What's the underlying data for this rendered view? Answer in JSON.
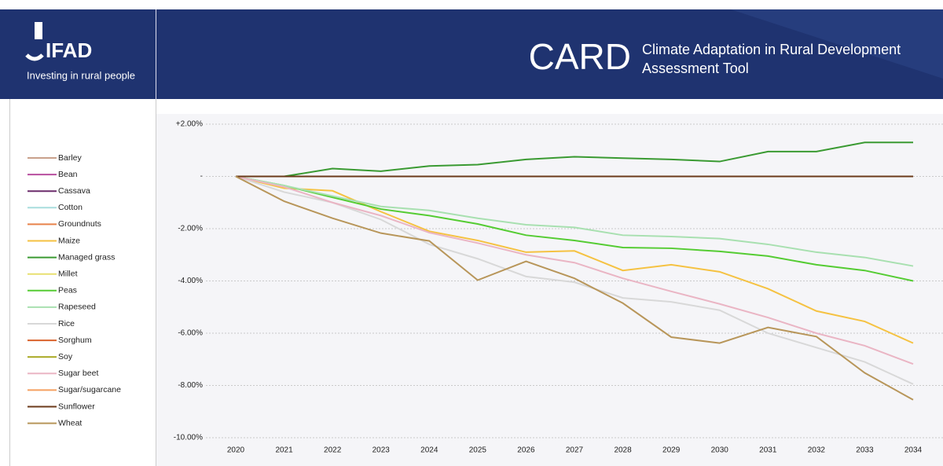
{
  "header": {
    "logo": "IFAD",
    "tagline": "Investing in rural people",
    "app_name": "CARD",
    "app_subtitle": [
      "Climate Adaptation in Rural Development",
      "Assessment Tool"
    ]
  },
  "chart_data": {
    "type": "line",
    "x": [
      2020,
      2021,
      2022,
      2023,
      2024,
      2025,
      2026,
      2027,
      2028,
      2029,
      2030,
      2031,
      2032,
      2033,
      2034
    ],
    "xlim": [
      2020,
      2034
    ],
    "ylim": [
      -10,
      2
    ],
    "yticks": [
      {
        "value": 2,
        "label": "+2.00%"
      },
      {
        "value": 0,
        "label": "-"
      },
      {
        "value": -2,
        "label": "-2.00%"
      },
      {
        "value": -4,
        "label": "-4.00%"
      },
      {
        "value": -6,
        "label": "-6.00%"
      },
      {
        "value": -8,
        "label": "-8.00%"
      },
      {
        "value": -10,
        "label": "-10.00%"
      }
    ],
    "grid": true,
    "legend": "left",
    "series": [
      {
        "name": "Barley",
        "color": "#c9a18c",
        "values": [
          0,
          0,
          0,
          0,
          0,
          0,
          0,
          0,
          0,
          0,
          0,
          0,
          0,
          0,
          0
        ]
      },
      {
        "name": "Bean",
        "color": "#b84f9f",
        "values": [
          0,
          0,
          0,
          0,
          0,
          0,
          0,
          0,
          0,
          0,
          0,
          0,
          0,
          0,
          0
        ]
      },
      {
        "name": "Cassava",
        "color": "#6b2c6b",
        "values": [
          0,
          0,
          0,
          0,
          0,
          0,
          0,
          0,
          0,
          0,
          0,
          0,
          0,
          0,
          0
        ]
      },
      {
        "name": "Cotton",
        "color": "#a8dede",
        "values": [
          0,
          0,
          0,
          0,
          0,
          0,
          0,
          0,
          0,
          0,
          0,
          0,
          0,
          0,
          0
        ]
      },
      {
        "name": "Groundnuts",
        "color": "#e8824a",
        "values": [
          0,
          0,
          0,
          0,
          0,
          0,
          0,
          0,
          0,
          0,
          0,
          0,
          0,
          0,
          0
        ]
      },
      {
        "name": "Maize",
        "color": "#f5c242",
        "values": [
          0,
          -0.45,
          -0.55,
          -1.35,
          -2.1,
          -2.45,
          -2.9,
          -2.85,
          -3.6,
          -3.38,
          -3.65,
          -4.3,
          -5.15,
          -5.55,
          -6.38
        ]
      },
      {
        "name": "Managed grass",
        "color": "#3a9a32",
        "values": [
          0,
          0,
          0.3,
          0.2,
          0.4,
          0.45,
          0.65,
          0.75,
          0.7,
          0.65,
          0.57,
          0.95,
          0.95,
          1.3,
          1.3
        ]
      },
      {
        "name": "Millet",
        "color": "#e8e070",
        "values": [
          0,
          0,
          0,
          0,
          0,
          0,
          0,
          0,
          0,
          0,
          0,
          0,
          0,
          0,
          0
        ]
      },
      {
        "name": "Peas",
        "color": "#55cc33",
        "values": [
          0,
          -0.35,
          -0.8,
          -1.25,
          -1.5,
          -1.82,
          -2.25,
          -2.45,
          -2.72,
          -2.75,
          -2.87,
          -3.05,
          -3.38,
          -3.6,
          -4.0
        ]
      },
      {
        "name": "Rapeseed",
        "color": "#a8e0b0",
        "values": [
          0,
          -0.35,
          -0.75,
          -1.15,
          -1.3,
          -1.6,
          -1.85,
          -1.95,
          -2.25,
          -2.3,
          -2.38,
          -2.6,
          -2.9,
          -3.1,
          -3.43
        ]
      },
      {
        "name": "Rice",
        "color": "#d8d8d8",
        "values": [
          0,
          -0.6,
          -1.0,
          -1.65,
          -2.6,
          -3.15,
          -3.83,
          -4.05,
          -4.65,
          -4.8,
          -5.12,
          -6.0,
          -6.55,
          -7.1,
          -7.95
        ]
      },
      {
        "name": "Sorghum",
        "color": "#d9622b",
        "values": [
          0,
          0,
          0,
          0,
          0,
          0,
          0,
          0,
          0,
          0,
          0,
          0,
          0,
          0,
          0
        ]
      },
      {
        "name": "Soy",
        "color": "#a8a820",
        "values": [
          0,
          0,
          0,
          0,
          0,
          0,
          0,
          0,
          0,
          0,
          0,
          0,
          0,
          0,
          0
        ]
      },
      {
        "name": "Sugar beet",
        "color": "#eab5c4",
        "values": [
          0,
          -0.4,
          -1.0,
          -1.5,
          -2.15,
          -2.55,
          -3.0,
          -3.3,
          -3.9,
          -4.4,
          -4.88,
          -5.4,
          -6.0,
          -6.48,
          -7.18
        ]
      },
      {
        "name": "Sugar/sugarcane",
        "color": "#f5a060",
        "values": [
          0,
          0,
          0,
          0,
          0,
          0,
          0,
          0,
          0,
          0,
          0,
          0,
          0,
          0,
          0
        ]
      },
      {
        "name": "Sunflower",
        "color": "#6b3a1a",
        "values": [
          0,
          0,
          0,
          0,
          0,
          0,
          0,
          0,
          0,
          0,
          0,
          0,
          0,
          0,
          0
        ]
      },
      {
        "name": "Wheat",
        "color": "#b8965a",
        "values": [
          0,
          -0.95,
          -1.6,
          -2.17,
          -2.47,
          -3.97,
          -3.25,
          -3.9,
          -4.85,
          -6.15,
          -6.38,
          -5.78,
          -6.13,
          -7.52,
          -8.55
        ]
      }
    ]
  }
}
